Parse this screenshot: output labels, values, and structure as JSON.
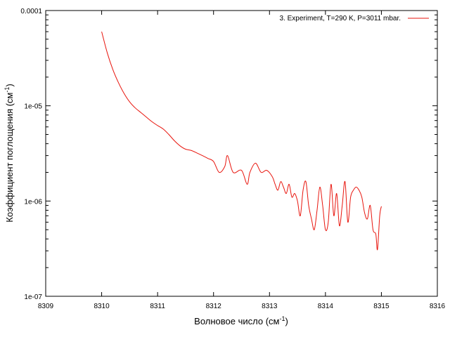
{
  "chart_data": {
    "type": "line",
    "xlabel": "Волновое число (см",
    "xlabel_sup": "-1",
    "xlabel_tail": ")",
    "ylabel": "Коэффициент поглощения (см",
    "ylabel_sup": "-1",
    "ylabel_tail": ")",
    "xlim": [
      8309,
      8316
    ],
    "ylim": [
      1e-07,
      0.0001
    ],
    "yscale": "log",
    "grid": false,
    "legend_position": "top-right",
    "x_ticks": [
      "8309",
      "8310",
      "8311",
      "8312",
      "8313",
      "8314",
      "8315",
      "8316"
    ],
    "y_ticks": [
      "1e-07",
      "1e-06",
      "1e-05",
      "0.0001"
    ],
    "series": [
      {
        "name": "3. Experiment, T=290 K, P=3011 mbar.",
        "color": "#e8150d",
        "x": [
          8310.0,
          8310.1,
          8310.2,
          8310.3,
          8310.4,
          8310.5,
          8310.6,
          8310.7,
          8310.8,
          8310.9,
          8311.0,
          8311.1,
          8311.2,
          8311.3,
          8311.4,
          8311.5,
          8311.6,
          8311.7,
          8311.8,
          8311.9,
          8312.0,
          8312.1,
          8312.2,
          8312.25,
          8312.35,
          8312.5,
          8312.6,
          8312.65,
          8312.75,
          8312.85,
          8312.95,
          8313.05,
          8313.1,
          8313.15,
          8313.2,
          8313.25,
          8313.3,
          8313.35,
          8313.4,
          8313.45,
          8313.5,
          8313.55,
          8313.6,
          8313.65,
          8313.7,
          8313.75,
          8313.8,
          8313.85,
          8313.9,
          8313.95,
          8314.0,
          8314.05,
          8314.1,
          8314.15,
          8314.2,
          8314.25,
          8314.3,
          8314.35,
          8314.4,
          8314.45,
          8314.5,
          8314.55,
          8314.6,
          8314.65,
          8314.7,
          8314.75,
          8314.8,
          8314.85,
          8314.9,
          8314.93,
          8314.97,
          8315.0
        ],
        "y": [
          6e-05,
          3.6e-05,
          2.4e-05,
          1.75e-05,
          1.35e-05,
          1.1e-05,
          9.5e-06,
          8.5e-06,
          7.6e-06,
          6.8e-06,
          6.2e-06,
          5.7e-06,
          5e-06,
          4.3e-06,
          3.8e-06,
          3.5e-06,
          3.4e-06,
          3.2e-06,
          3e-06,
          2.8e-06,
          2.6e-06,
          2e-06,
          2.3e-06,
          3e-06,
          2e-06,
          2.1e-06,
          1.5e-06,
          2e-06,
          2.5e-06,
          2e-06,
          2.1e-06,
          1.8e-06,
          1.5e-06,
          1.3e-06,
          1.6e-06,
          1.4e-06,
          1.2e-06,
          1.5e-06,
          1.1e-06,
          1.2e-06,
          1e-06,
          7e-07,
          1.3e-06,
          1.6e-06,
          9e-07,
          6.5e-07,
          5e-07,
          8e-07,
          1.4e-06,
          9e-07,
          5e-07,
          6e-07,
          1.5e-06,
          7e-07,
          1.2e-06,
          5.5e-07,
          9e-07,
          1.6e-06,
          6e-07,
          1.1e-06,
          1.3e-06,
          1.4e-06,
          1.3e-06,
          1.1e-06,
          7.5e-07,
          6.5e-07,
          9e-07,
          5e-07,
          4.5e-07,
          3.1e-07,
          7e-07,
          8.8e-07
        ]
      }
    ]
  }
}
